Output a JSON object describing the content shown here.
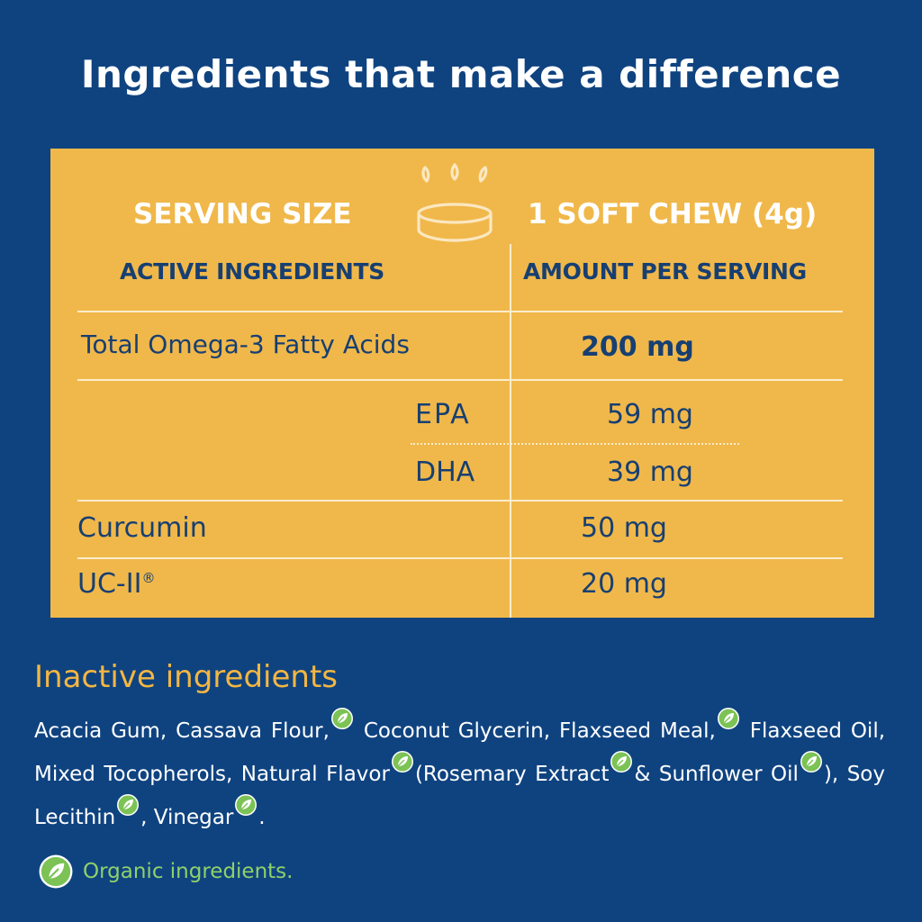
{
  "headline": "Ingredients that make a difference",
  "table": {
    "serving_label": "SERVING SIZE",
    "serving_value": "1 SOFT CHEW (4g)",
    "col_active": "ACTIVE INGREDIENTS",
    "col_amount": "AMOUNT PER SERVING",
    "rows": [
      {
        "name": "Total Omega-3 Fatty Acids",
        "amount": "200 mg"
      },
      {
        "name": "EPA",
        "amount": "59 mg"
      },
      {
        "name": "DHA",
        "amount": "39 mg"
      },
      {
        "name": "Curcumin",
        "amount": "50 mg"
      },
      {
        "name": "UC-II",
        "reg": "®",
        "amount": "20 mg"
      }
    ]
  },
  "inactive": {
    "title": "Inactive ingredients",
    "items": [
      "Acacia Gum, Cassava Flour,",
      "Coconut Glycerin, Flaxseed Meal,",
      "Flaxseed Oil, Mixed Tocopherols, Natural Flavor",
      "(Rosemary Extract",
      "& Sunflower Oil",
      "), Soy Lecithin",
      ", Vinegar",
      "."
    ]
  },
  "legend": {
    "text": "Organic ingredients.",
    "icon": "leaf-icon"
  },
  "colors": {
    "background": "#0f4380",
    "panel": "#f0b84a",
    "table_text": "#173f72",
    "accent_title": "#f3b642",
    "organic_green": "#8fd16a"
  }
}
